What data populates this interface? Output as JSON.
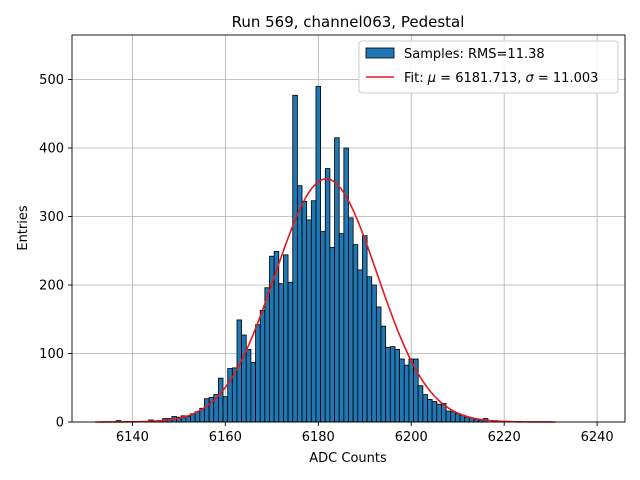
{
  "chart_data": {
    "type": "bar",
    "title": "Run 569, channel063, Pedestal",
    "xlabel": "ADC Counts",
    "ylabel": "Entries",
    "xlim": [
      6127,
      6246
    ],
    "ylim": [
      0,
      565
    ],
    "xticks": [
      6140,
      6160,
      6180,
      6200,
      6220,
      6240
    ],
    "xtick_labels": [
      "6140",
      "6160",
      "6180",
      "6200",
      "6220",
      "6240"
    ],
    "yticks": [
      0,
      100,
      200,
      300,
      400,
      500
    ],
    "ytick_labels": [
      "0",
      "100",
      "200",
      "300",
      "400",
      "500"
    ],
    "grid": true,
    "legend_position": "top-right",
    "bar_color": "#1f77b4",
    "fit_color": "#e41a1c",
    "histogram": {
      "name": "Samples: RMS=11.38",
      "bin_width": 1,
      "bins": [
        [
          6137,
          2
        ],
        [
          6139,
          1
        ],
        [
          6144,
          3
        ],
        [
          6146,
          2
        ],
        [
          6147,
          5
        ],
        [
          6148,
          5
        ],
        [
          6149,
          8
        ],
        [
          6150,
          7
        ],
        [
          6151,
          9
        ],
        [
          6152,
          8
        ],
        [
          6153,
          12
        ],
        [
          6154,
          15
        ],
        [
          6155,
          20
        ],
        [
          6156,
          34
        ],
        [
          6157,
          36
        ],
        [
          6158,
          40
        ],
        [
          6159,
          64
        ],
        [
          6160,
          37
        ],
        [
          6161,
          78
        ],
        [
          6162,
          79
        ],
        [
          6163,
          149
        ],
        [
          6164,
          127
        ],
        [
          6165,
          106
        ],
        [
          6166,
          87
        ],
        [
          6167,
          142
        ],
        [
          6168,
          163
        ],
        [
          6169,
          196
        ],
        [
          6170,
          242
        ],
        [
          6171,
          249
        ],
        [
          6172,
          202
        ],
        [
          6173,
          244
        ],
        [
          6174,
          204
        ],
        [
          6175,
          477
        ],
        [
          6176,
          345
        ],
        [
          6177,
          322
        ],
        [
          6178,
          295
        ],
        [
          6179,
          323
        ],
        [
          6180,
          490
        ],
        [
          6181,
          278
        ],
        [
          6182,
          370
        ],
        [
          6183,
          255
        ],
        [
          6184,
          415
        ],
        [
          6185,
          275
        ],
        [
          6186,
          400
        ],
        [
          6187,
          298
        ],
        [
          6188,
          259
        ],
        [
          6189,
          222
        ],
        [
          6190,
          272
        ],
        [
          6191,
          212
        ],
        [
          6192,
          200
        ],
        [
          6193,
          168
        ],
        [
          6194,
          140
        ],
        [
          6195,
          109
        ],
        [
          6196,
          110
        ],
        [
          6197,
          106
        ],
        [
          6198,
          92
        ],
        [
          6199,
          83
        ],
        [
          6200,
          92
        ],
        [
          6201,
          92
        ],
        [
          6202,
          53
        ],
        [
          6203,
          40
        ],
        [
          6204,
          33
        ],
        [
          6205,
          30
        ],
        [
          6206,
          26
        ],
        [
          6207,
          27
        ],
        [
          6208,
          16
        ],
        [
          6209,
          15
        ],
        [
          6210,
          12
        ],
        [
          6211,
          10
        ],
        [
          6212,
          7
        ],
        [
          6213,
          6
        ],
        [
          6214,
          4
        ],
        [
          6215,
          3
        ],
        [
          6216,
          5
        ],
        [
          6218,
          2
        ],
        [
          6220,
          1
        ]
      ]
    },
    "fit": {
      "name": "Fit: μ = 6181.713, σ = 11.003",
      "label_prefix": "Fit: ",
      "mu_symbol": "μ",
      "sigma_symbol": "σ",
      "mu_value": " = 6181.713, ",
      "sigma_value": " = 11.003",
      "mu": 6181.713,
      "sigma": 11.003,
      "amplitude": 355,
      "x_range": [
        6132,
        6231
      ]
    }
  }
}
